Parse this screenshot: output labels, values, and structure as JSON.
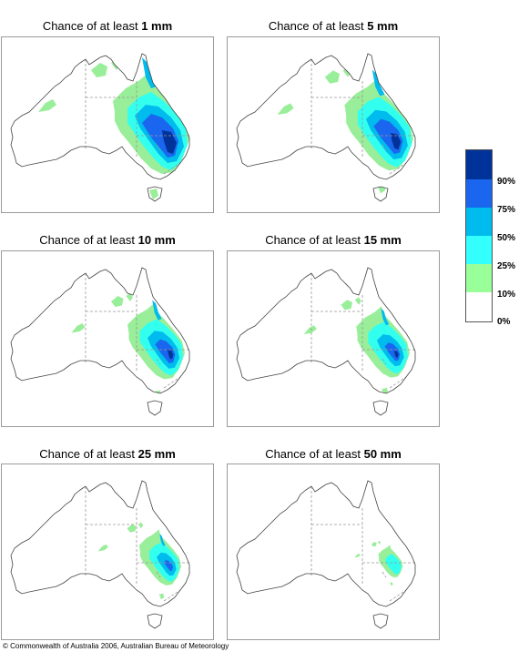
{
  "panels": [
    {
      "prefix": "Chance of at least ",
      "amount": "1 mm",
      "level": 0
    },
    {
      "prefix": "Chance of at least ",
      "amount": "5 mm",
      "level": 1
    },
    {
      "prefix": "Chance of at least ",
      "amount": "10 mm",
      "level": 2
    },
    {
      "prefix": "Chance of at least ",
      "amount": "15 mm",
      "level": 3
    },
    {
      "prefix": "Chance of at least ",
      "amount": "25 mm",
      "level": 4
    },
    {
      "prefix": "Chance of at least ",
      "amount": "50 mm",
      "level": 5
    }
  ],
  "legend": {
    "bands": [
      {
        "label": "90%",
        "color": "#003399"
      },
      {
        "label": "75%",
        "color": "#1a66ee"
      },
      {
        "label": "50%",
        "color": "#00bbee"
      },
      {
        "label": "25%",
        "color": "#33ffff"
      },
      {
        "label": "10%",
        "color": "#99ff99"
      },
      {
        "label": "0%",
        "color": "#ffffff"
      }
    ]
  },
  "map_colors": {
    "outline": "#444444",
    "state_border": "#999999",
    "green": "#99ee99",
    "cyan": "#33ffee",
    "sky": "#00bbee",
    "blue": "#1a66ee",
    "navy": "#003399"
  },
  "copyright": "© Commonwealth of Australia 2006, Australian Bureau of Meteorology"
}
